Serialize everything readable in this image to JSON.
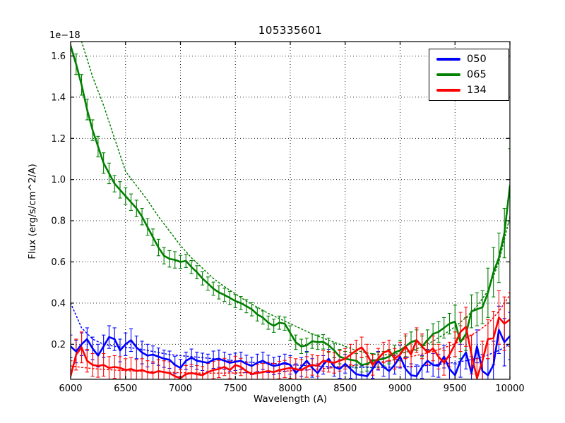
{
  "figure": {
    "title": "105335601",
    "xlabel": "Wavelength (A)",
    "ylabel": "Flux (erg/s/cm^2/A)",
    "y_offset_label": "1e−18"
  },
  "legend": {
    "position": "upper right",
    "items": [
      {
        "label": "050",
        "color": "#0000ff"
      },
      {
        "label": "065",
        "color": "#008000"
      },
      {
        "label": "134",
        "color": "#ff0000"
      }
    ]
  },
  "chart_data": {
    "type": "line",
    "title": "105335601",
    "xlabel": "Wavelength (A)",
    "ylabel": "Flux (erg/s/cm^2/A)",
    "y_scale_factor": "1e-18",
    "grid": true,
    "grid_style": "dotted",
    "xlim": [
      6000,
      10000
    ],
    "ylim": [
      0.03,
      1.67
    ],
    "xticks": [
      6000,
      6500,
      7000,
      7500,
      8000,
      8500,
      9000,
      9500,
      10000
    ],
    "xtick_labels": [
      "6000",
      "6500",
      "7000",
      "7500",
      "8000",
      "8500",
      "9000",
      "9500",
      "10000"
    ],
    "yticks": [
      0.2,
      0.4,
      0.6,
      0.8,
      1.0,
      1.2,
      1.4,
      1.6
    ],
    "ytick_labels": [
      "0.2",
      "0.4",
      "0.6",
      "0.8",
      "1.0",
      "1.2",
      "1.4",
      "1.6"
    ],
    "series": [
      {
        "name": "050",
        "color": "#0000ff",
        "style": "solid",
        "has_error_bars": true,
        "x_start": 6000,
        "x_step": 50,
        "values": [
          0.19,
          0.165,
          0.2,
          0.225,
          0.18,
          0.145,
          0.19,
          0.235,
          0.225,
          0.17,
          0.2,
          0.22,
          0.185,
          0.16,
          0.145,
          0.15,
          0.14,
          0.13,
          0.125,
          0.1,
          0.085,
          0.12,
          0.135,
          0.12,
          0.115,
          0.11,
          0.125,
          0.13,
          0.12,
          0.11,
          0.115,
          0.12,
          0.105,
          0.095,
          0.11,
          0.12,
          0.105,
          0.095,
          0.1,
          0.11,
          0.1,
          0.06,
          0.09,
          0.12,
          0.085,
          0.06,
          0.1,
          0.13,
          0.09,
          0.08,
          0.105,
          0.08,
          0.055,
          0.05,
          0.045,
          0.08,
          0.12,
          0.09,
          0.07,
          0.1,
          0.14,
          0.08,
          0.05,
          0.045,
          0.09,
          0.12,
          0.1,
          0.095,
          0.14,
          0.08,
          0.05,
          0.12,
          0.16,
          0.06,
          0.19,
          0.07,
          0.05,
          0.1,
          0.27,
          0.21,
          0.24
        ],
        "errors": [
          0.055,
          0.055,
          0.055,
          0.055,
          0.055,
          0.055,
          0.055,
          0.055,
          0.055,
          0.055,
          0.055,
          0.055,
          0.055,
          0.055,
          0.055,
          0.042,
          0.042,
          0.042,
          0.042,
          0.042,
          0.042,
          0.042,
          0.042,
          0.042,
          0.042,
          0.042,
          0.042,
          0.042,
          0.042,
          0.042,
          0.042,
          0.042,
          0.042,
          0.042,
          0.042,
          0.042,
          0.042,
          0.042,
          0.042,
          0.042,
          0.045,
          0.045,
          0.045,
          0.045,
          0.045,
          0.045,
          0.045,
          0.045,
          0.045,
          0.045,
          0.045,
          0.045,
          0.045,
          0.045,
          0.045,
          0.045,
          0.045,
          0.045,
          0.045,
          0.045,
          0.055,
          0.055,
          0.055,
          0.055,
          0.055,
          0.055,
          0.055,
          0.055,
          0.055,
          0.055,
          0.055,
          0.08,
          0.08,
          0.08,
          0.08,
          0.08,
          0.08,
          0.115,
          0.115,
          0.115,
          0.115
        ]
      },
      {
        "name": "065",
        "color": "#008000",
        "style": "solid",
        "has_error_bars": true,
        "x_start": 6000,
        "x_step": 50,
        "values": [
          1.65,
          1.56,
          1.46,
          1.34,
          1.24,
          1.16,
          1.08,
          1.03,
          0.98,
          0.95,
          0.92,
          0.89,
          0.86,
          0.82,
          0.77,
          0.72,
          0.67,
          0.63,
          0.615,
          0.61,
          0.6,
          0.605,
          0.575,
          0.55,
          0.52,
          0.495,
          0.47,
          0.452,
          0.44,
          0.425,
          0.41,
          0.4,
          0.385,
          0.37,
          0.345,
          0.33,
          0.305,
          0.29,
          0.305,
          0.3,
          0.255,
          0.21,
          0.19,
          0.195,
          0.215,
          0.21,
          0.212,
          0.195,
          0.17,
          0.14,
          0.13,
          0.125,
          0.12,
          0.1,
          0.105,
          0.12,
          0.125,
          0.13,
          0.14,
          0.16,
          0.17,
          0.19,
          0.21,
          0.22,
          0.19,
          0.22,
          0.25,
          0.26,
          0.28,
          0.3,
          0.31,
          0.21,
          0.25,
          0.36,
          0.37,
          0.38,
          0.45,
          0.55,
          0.62,
          0.74,
          0.97
        ],
        "errors": [
          0.05,
          0.05,
          0.05,
          0.05,
          0.05,
          0.05,
          0.05,
          0.05,
          0.04,
          0.04,
          0.04,
          0.04,
          0.04,
          0.04,
          0.04,
          0.04,
          0.04,
          0.04,
          0.04,
          0.04,
          0.032,
          0.032,
          0.032,
          0.032,
          0.032,
          0.032,
          0.032,
          0.032,
          0.032,
          0.032,
          0.032,
          0.032,
          0.032,
          0.032,
          0.032,
          0.032,
          0.032,
          0.032,
          0.032,
          0.032,
          0.035,
          0.035,
          0.035,
          0.035,
          0.035,
          0.035,
          0.035,
          0.035,
          0.035,
          0.035,
          0.035,
          0.035,
          0.035,
          0.035,
          0.035,
          0.035,
          0.035,
          0.035,
          0.035,
          0.035,
          0.05,
          0.05,
          0.05,
          0.05,
          0.05,
          0.05,
          0.05,
          0.05,
          0.05,
          0.05,
          0.08,
          0.08,
          0.08,
          0.08,
          0.08,
          0.08,
          0.12,
          0.12,
          0.12,
          0.12,
          0.18
        ]
      },
      {
        "name": "134",
        "color": "#ff0000",
        "style": "solid",
        "has_error_bars": true,
        "x_start": 6000,
        "x_step": 50,
        "values": [
          0.045,
          0.15,
          0.185,
          0.12,
          0.1,
          0.095,
          0.1,
          0.085,
          0.09,
          0.085,
          0.075,
          0.08,
          0.07,
          0.075,
          0.065,
          0.06,
          0.07,
          0.065,
          0.06,
          0.045,
          0.035,
          0.055,
          0.06,
          0.055,
          0.05,
          0.065,
          0.075,
          0.08,
          0.09,
          0.075,
          0.1,
          0.09,
          0.07,
          0.055,
          0.06,
          0.065,
          0.07,
          0.065,
          0.075,
          0.08,
          0.085,
          0.08,
          0.075,
          0.09,
          0.1,
          0.095,
          0.12,
          0.115,
          0.11,
          0.12,
          0.13,
          0.15,
          0.17,
          0.185,
          0.15,
          0.1,
          0.13,
          0.16,
          0.17,
          0.13,
          0.15,
          0.19,
          0.15,
          0.22,
          0.19,
          0.16,
          0.18,
          0.14,
          0.11,
          0.15,
          0.2,
          0.26,
          0.285,
          0.15,
          0.035,
          0.12,
          0.225,
          0.23,
          0.33,
          0.3,
          0.32
        ],
        "errors": [
          0.075,
          0.075,
          0.075,
          0.055,
          0.055,
          0.055,
          0.055,
          0.055,
          0.055,
          0.055,
          0.055,
          0.055,
          0.055,
          0.055,
          0.055,
          0.055,
          0.055,
          0.055,
          0.055,
          0.055,
          0.042,
          0.042,
          0.042,
          0.042,
          0.042,
          0.042,
          0.042,
          0.042,
          0.042,
          0.042,
          0.042,
          0.042,
          0.042,
          0.042,
          0.042,
          0.042,
          0.042,
          0.042,
          0.042,
          0.042,
          0.05,
          0.05,
          0.05,
          0.05,
          0.05,
          0.05,
          0.05,
          0.05,
          0.05,
          0.05,
          0.05,
          0.05,
          0.05,
          0.05,
          0.05,
          0.05,
          0.05,
          0.05,
          0.05,
          0.05,
          0.06,
          0.06,
          0.06,
          0.06,
          0.06,
          0.06,
          0.06,
          0.06,
          0.06,
          0.06,
          0.06,
          0.095,
          0.095,
          0.095,
          0.095,
          0.095,
          0.095,
          0.13,
          0.13,
          0.13,
          0.13
        ]
      },
      {
        "name": "050 model fit",
        "color": "#0000ff",
        "style": "dotted",
        "x_start": 6000,
        "x_step": 100,
        "values": [
          0.4,
          0.28,
          0.225,
          0.2,
          0.19,
          0.185,
          0.18,
          0.17,
          0.16,
          0.15,
          0.145,
          0.14,
          0.135,
          0.13,
          0.125,
          0.12,
          0.115,
          0.11,
          0.108,
          0.105,
          0.1,
          0.098,
          0.095,
          0.093,
          0.091,
          0.09,
          0.089,
          0.088,
          0.088,
          0.089,
          0.09,
          0.092,
          0.095,
          0.1,
          0.105,
          0.112,
          0.12,
          0.132,
          0.148,
          0.17,
          0.2
        ]
      },
      {
        "name": "065 model fit",
        "color": "#008000",
        "style": "dotted",
        "x_start": 6000,
        "x_step": 100,
        "values": [
          1.95,
          1.67,
          1.5,
          1.36,
          1.2,
          1.04,
          0.97,
          0.9,
          0.82,
          0.75,
          0.68,
          0.62,
          0.57,
          0.52,
          0.48,
          0.445,
          0.41,
          0.38,
          0.35,
          0.325,
          0.3,
          0.275,
          0.25,
          0.23,
          0.21,
          0.19,
          0.17,
          0.158,
          0.15,
          0.15,
          0.155,
          0.168,
          0.188,
          0.215,
          0.248,
          0.285,
          0.33,
          0.385,
          0.46,
          0.6,
          0.82
        ]
      },
      {
        "name": "134 model fit",
        "color": "#ff0000",
        "style": "dotted",
        "x_start": 6000,
        "x_step": 100,
        "values": [
          0.095,
          0.088,
          0.082,
          0.078,
          0.075,
          0.072,
          0.07,
          0.068,
          0.066,
          0.064,
          0.062,
          0.061,
          0.06,
          0.06,
          0.06,
          0.061,
          0.062,
          0.064,
          0.066,
          0.068,
          0.071,
          0.074,
          0.078,
          0.082,
          0.087,
          0.092,
          0.098,
          0.105,
          0.112,
          0.12,
          0.13,
          0.14,
          0.152,
          0.166,
          0.183,
          0.203,
          0.23,
          0.26,
          0.3,
          0.36,
          0.44
        ]
      }
    ]
  }
}
